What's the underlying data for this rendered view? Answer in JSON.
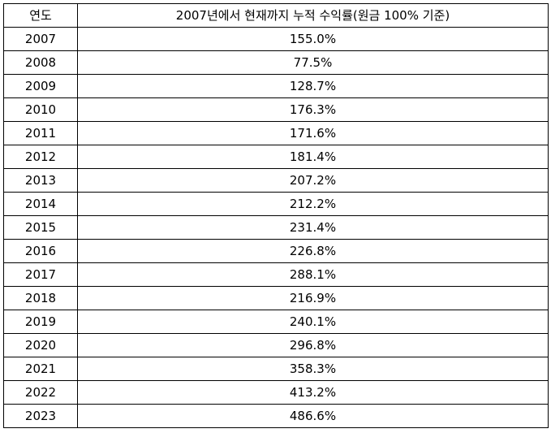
{
  "table": {
    "headers": {
      "year": "연도",
      "value": "2007년에서 현재까지 누적 수익률(원금 100% 기준)"
    },
    "rows": [
      {
        "year": "2007",
        "value": "155.0%"
      },
      {
        "year": "2008",
        "value": "77.5%"
      },
      {
        "year": "2009",
        "value": "128.7%"
      },
      {
        "year": "2010",
        "value": "176.3%"
      },
      {
        "year": "2011",
        "value": "171.6%"
      },
      {
        "year": "2012",
        "value": "181.4%"
      },
      {
        "year": "2013",
        "value": "207.2%"
      },
      {
        "year": "2014",
        "value": "212.2%"
      },
      {
        "year": "2015",
        "value": "231.4%"
      },
      {
        "year": "2016",
        "value": "226.8%"
      },
      {
        "year": "2017",
        "value": "288.1%"
      },
      {
        "year": "2018",
        "value": "216.9%"
      },
      {
        "year": "2019",
        "value": "240.1%"
      },
      {
        "year": "2020",
        "value": "296.8%"
      },
      {
        "year": "2021",
        "value": "358.3%"
      },
      {
        "year": "2022",
        "value": "413.2%"
      },
      {
        "year": "2023",
        "value": "486.6%"
      }
    ]
  }
}
